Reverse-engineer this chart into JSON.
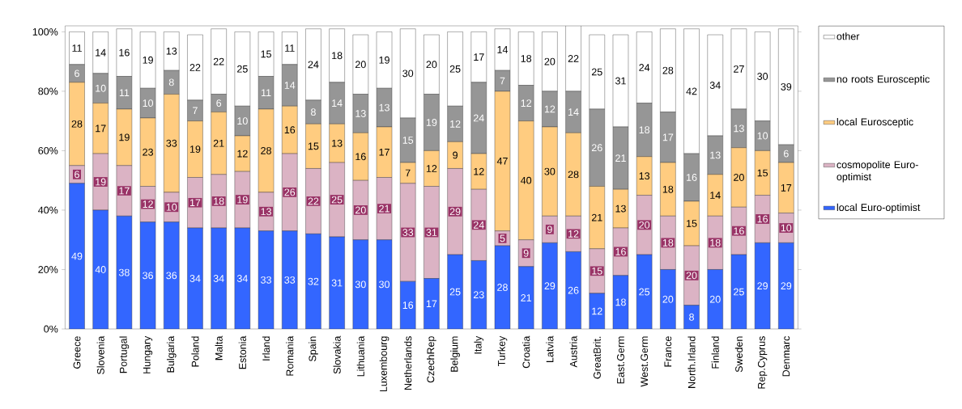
{
  "chart_data": {
    "type": "bar",
    "stacked": true,
    "data_labels": true,
    "legend": "right",
    "grid": false,
    "categories": [
      "Greece",
      "Slovenia",
      "Portugal",
      "Hungary",
      "Bulgaria",
      "Poland",
      "Malta",
      "Estonia",
      "Irland",
      "Romania",
      "Spain",
      "Slovakia",
      "Lithuania",
      "Luxembourg",
      "Netherlands",
      "CzechRep",
      "Belgium",
      "Italy",
      "Turkey",
      "Croatia",
      "Latvia",
      "Austria",
      "GreatBrit.",
      "East.Germ",
      "West.Germ",
      "France",
      "North.Irland",
      "Finland",
      "Sweden",
      "Rep.Cyprus",
      "Denmarc"
    ],
    "ylim": [
      0,
      102
    ],
    "yticks": [
      {
        "value": 0,
        "label": "0%"
      },
      {
        "value": 20,
        "label": "20%"
      },
      {
        "value": 40,
        "label": "40%"
      },
      {
        "value": 60,
        "label": "60%"
      },
      {
        "value": 80,
        "label": "80%"
      },
      {
        "value": 100,
        "label": "100%"
      }
    ],
    "series": [
      {
        "name": "local Euro-optimist",
        "color": "#3366ff",
        "values": [
          49,
          40,
          38,
          36,
          36,
          34,
          34,
          34,
          33,
          33,
          32,
          31,
          30,
          30,
          16,
          17,
          25,
          23,
          28,
          21,
          29,
          26,
          12,
          18,
          25,
          20,
          8,
          20,
          25,
          29,
          29
        ]
      },
      {
        "name": "cosmopolite Euro-optimist",
        "color": "#dbb3c4",
        "values": [
          6,
          19,
          17,
          12,
          10,
          17,
          18,
          19,
          13,
          26,
          22,
          25,
          20,
          21,
          33,
          31,
          29,
          24,
          5,
          9,
          9,
          12,
          15,
          16,
          20,
          18,
          20,
          18,
          16,
          16,
          10
        ]
      },
      {
        "name": "local Eurosceptic",
        "color": "#ffcc80",
        "values": [
          28,
          17,
          19,
          23,
          33,
          19,
          21,
          12,
          28,
          16,
          15,
          13,
          16,
          17,
          7,
          12,
          9,
          12,
          47,
          40,
          30,
          28,
          21,
          13,
          13,
          18,
          15,
          14,
          20,
          15,
          17
        ]
      },
      {
        "name": "no roots Eurosceptic",
        "color": "#969696",
        "values": [
          6,
          10,
          11,
          10,
          8,
          7,
          6,
          10,
          11,
          14,
          8,
          14,
          13,
          13,
          15,
          19,
          12,
          24,
          7,
          12,
          12,
          14,
          26,
          21,
          18,
          17,
          16,
          13,
          13,
          10,
          6
        ]
      },
      {
        "name": "other",
        "color": "#ffffff",
        "values": [
          11,
          14,
          16,
          19,
          13,
          22,
          22,
          25,
          15,
          11,
          24,
          18,
          20,
          19,
          30,
          20,
          25,
          17,
          14,
          18,
          20,
          22,
          25,
          31,
          24,
          28,
          42,
          34,
          27,
          30,
          39
        ]
      }
    ]
  }
}
